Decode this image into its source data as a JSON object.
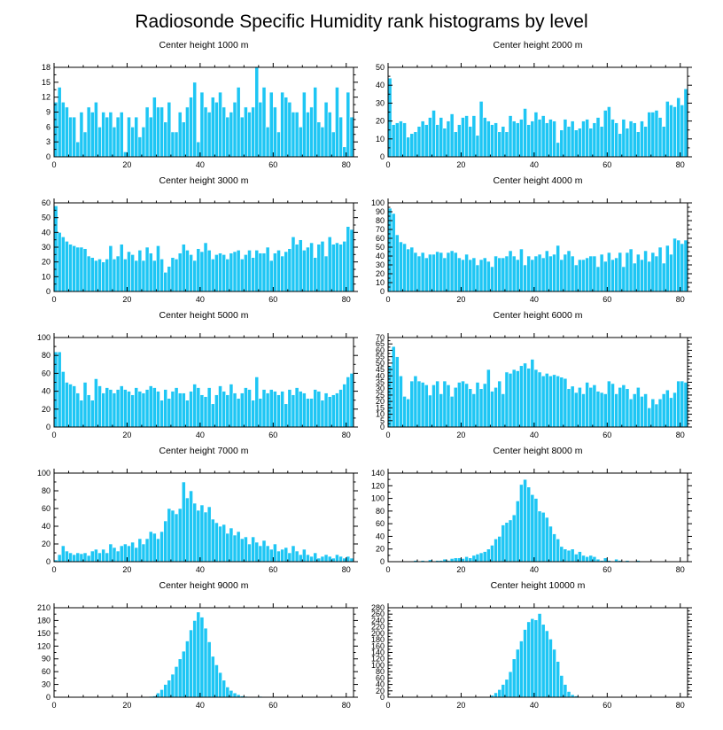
{
  "figure": {
    "title": "Radiosonde Specific Humidity rank histograms by level"
  },
  "colors": {
    "bar": "#1ec6f4",
    "bar_edge": "#ffffff",
    "frame": "#000000"
  },
  "chart_data": [
    {
      "type": "bar",
      "title": "Center height 1000 m",
      "xlim": [
        0,
        82
      ],
      "ylim": [
        0,
        18
      ],
      "xticks": [
        0,
        20,
        40,
        60,
        80
      ],
      "yticks": [
        0,
        3,
        6,
        9,
        12,
        15,
        18
      ],
      "values": [
        11,
        14,
        11,
        10,
        8,
        8,
        3,
        9,
        5,
        10,
        9,
        11,
        6,
        9,
        8,
        9,
        6,
        8,
        9,
        1,
        8,
        6,
        8,
        4,
        6,
        10,
        8,
        12,
        10,
        10,
        7,
        11,
        5,
        5,
        9,
        7,
        10,
        12,
        15,
        3,
        13,
        10,
        9,
        12,
        11,
        13,
        10,
        8,
        9,
        11,
        14,
        8,
        10,
        9,
        10,
        18,
        11,
        14,
        6,
        13,
        10,
        5,
        13,
        12,
        11,
        9,
        9,
        6,
        13,
        9,
        10,
        14,
        7,
        6,
        11,
        9,
        5,
        14,
        8,
        2,
        13,
        8
      ]
    },
    {
      "type": "bar",
      "title": "Center height 2000 m",
      "xlim": [
        0,
        82
      ],
      "ylim": [
        0,
        50
      ],
      "xticks": [
        0,
        20,
        40,
        60,
        80
      ],
      "yticks": [
        0,
        10,
        20,
        30,
        40,
        50
      ],
      "values": [
        44,
        18,
        19,
        20,
        19,
        11,
        13,
        14,
        17,
        20,
        18,
        22,
        26,
        18,
        22,
        16,
        20,
        24,
        14,
        18,
        22,
        23,
        17,
        23,
        12,
        31,
        22,
        20,
        18,
        19,
        14,
        17,
        14,
        23,
        20,
        19,
        21,
        27,
        18,
        20,
        25,
        21,
        23,
        19,
        21,
        20,
        8,
        15,
        21,
        17,
        20,
        15,
        16,
        20,
        21,
        16,
        19,
        22,
        17,
        26,
        28,
        21,
        19,
        13,
        21,
        16,
        20,
        19,
        14,
        20,
        17,
        25,
        25,
        26,
        22,
        17,
        31,
        29,
        28,
        33,
        29,
        38
      ]
    },
    {
      "type": "bar",
      "title": "Center height 3000 m",
      "xlim": [
        0,
        82
      ],
      "ylim": [
        0,
        60
      ],
      "xticks": [
        0,
        20,
        40,
        60,
        80
      ],
      "yticks": [
        0,
        10,
        20,
        30,
        40,
        50,
        60
      ],
      "values": [
        58,
        40,
        37,
        34,
        32,
        31,
        30,
        30,
        29,
        24,
        23,
        21,
        22,
        20,
        22,
        31,
        22,
        24,
        32,
        22,
        27,
        25,
        21,
        28,
        21,
        30,
        26,
        21,
        31,
        22,
        13,
        17,
        23,
        22,
        26,
        32,
        28,
        25,
        21,
        29,
        27,
        33,
        28,
        22,
        25,
        26,
        25,
        22,
        26,
        27,
        28,
        22,
        25,
        28,
        23,
        28,
        26,
        26,
        30,
        21,
        26,
        28,
        24,
        27,
        29,
        37,
        32,
        35,
        28,
        30,
        33,
        23,
        32,
        34,
        24,
        37,
        32,
        33,
        32,
        34,
        44,
        42
      ]
    },
    {
      "type": "bar",
      "title": "Center height 4000 m",
      "xlim": [
        0,
        82
      ],
      "ylim": [
        0,
        100
      ],
      "xticks": [
        0,
        20,
        40,
        60,
        80
      ],
      "yticks": [
        0,
        10,
        20,
        30,
        40,
        50,
        60,
        70,
        80,
        90,
        100
      ],
      "values": [
        94,
        88,
        64,
        56,
        54,
        48,
        50,
        44,
        40,
        44,
        38,
        42,
        42,
        45,
        44,
        38,
        44,
        46,
        44,
        38,
        36,
        42,
        36,
        38,
        30,
        36,
        38,
        34,
        28,
        40,
        38,
        38,
        40,
        46,
        40,
        36,
        48,
        30,
        40,
        36,
        40,
        42,
        38,
        46,
        40,
        42,
        52,
        36,
        42,
        46,
        40,
        30,
        36,
        36,
        38,
        40,
        40,
        28,
        42,
        34,
        44,
        36,
        38,
        44,
        28,
        44,
        48,
        32,
        42,
        36,
        46,
        34,
        44,
        40,
        50,
        32,
        52,
        42,
        60,
        58,
        54,
        58
      ]
    },
    {
      "type": "bar",
      "title": "Center height 5000 m",
      "xlim": [
        0,
        82
      ],
      "ylim": [
        0,
        100
      ],
      "xticks": [
        0,
        20,
        40,
        60,
        80
      ],
      "yticks": [
        0,
        20,
        40,
        60,
        80,
        100
      ],
      "values": [
        84,
        84,
        62,
        50,
        48,
        46,
        38,
        30,
        50,
        36,
        30,
        54,
        46,
        38,
        44,
        42,
        38,
        42,
        46,
        42,
        40,
        36,
        44,
        40,
        38,
        42,
        46,
        44,
        40,
        30,
        42,
        32,
        40,
        44,
        38,
        38,
        30,
        40,
        48,
        44,
        36,
        34,
        44,
        26,
        36,
        46,
        40,
        36,
        48,
        38,
        32,
        38,
        44,
        42,
        30,
        56,
        32,
        42,
        38,
        42,
        40,
        36,
        40,
        26,
        42,
        36,
        44,
        40,
        38,
        32,
        32,
        42,
        40,
        30,
        38,
        34,
        36,
        38,
        42,
        48,
        56,
        60
      ]
    },
    {
      "type": "bar",
      "title": "Center height 6000 m",
      "xlim": [
        0,
        82
      ],
      "ylim": [
        0,
        70
      ],
      "xticks": [
        0,
        20,
        40,
        60,
        80
      ],
      "yticks": [
        0,
        5,
        10,
        15,
        20,
        25,
        30,
        35,
        40,
        45,
        50,
        55,
        60,
        65,
        70
      ],
      "values": [
        48,
        63,
        55,
        40,
        24,
        22,
        36,
        40,
        36,
        35,
        33,
        25,
        33,
        36,
        26,
        36,
        33,
        24,
        31,
        35,
        36,
        34,
        30,
        26,
        35,
        30,
        34,
        45,
        28,
        31,
        36,
        26,
        43,
        42,
        45,
        44,
        48,
        50,
        46,
        53,
        45,
        43,
        40,
        42,
        40,
        41,
        40,
        39,
        38,
        30,
        32,
        27,
        31,
        26,
        35,
        31,
        33,
        28,
        27,
        26,
        36,
        34,
        26,
        31,
        33,
        30,
        22,
        26,
        31,
        24,
        26,
        15,
        22,
        18,
        22,
        26,
        29,
        23,
        27,
        36,
        36,
        35
      ]
    },
    {
      "type": "bar",
      "title": "Center height 7000 m",
      "xlim": [
        0,
        82
      ],
      "ylim": [
        0,
        100
      ],
      "xticks": [
        0,
        20,
        40,
        60,
        80
      ],
      "yticks": [
        0,
        20,
        40,
        60,
        80,
        100
      ],
      "values": [
        2,
        8,
        18,
        12,
        10,
        8,
        10,
        9,
        10,
        7,
        12,
        14,
        10,
        14,
        10,
        20,
        16,
        12,
        18,
        20,
        18,
        22,
        16,
        26,
        20,
        26,
        34,
        32,
        26,
        34,
        46,
        60,
        58,
        54,
        60,
        90,
        72,
        80,
        66,
        58,
        64,
        56,
        62,
        48,
        44,
        40,
        42,
        32,
        38,
        30,
        34,
        26,
        28,
        20,
        28,
        22,
        18,
        24,
        18,
        14,
        20,
        12,
        14,
        16,
        10,
        18,
        12,
        8,
        14,
        8,
        6,
        10,
        4,
        6,
        8,
        6,
        4,
        8,
        6,
        4,
        6,
        4
      ]
    },
    {
      "type": "bar",
      "title": "Center height 8000 m",
      "xlim": [
        0,
        82
      ],
      "ylim": [
        0,
        140
      ],
      "xticks": [
        0,
        20,
        40,
        60,
        80
      ],
      "yticks": [
        0,
        20,
        40,
        60,
        80,
        100,
        120,
        140
      ],
      "values": [
        0,
        0,
        0,
        0,
        1,
        0,
        0,
        2,
        0,
        2,
        1,
        3,
        0,
        2,
        2,
        4,
        2,
        5,
        6,
        6,
        5,
        8,
        6,
        10,
        12,
        14,
        16,
        20,
        26,
        36,
        40,
        58,
        62,
        66,
        74,
        96,
        122,
        130,
        118,
        106,
        100,
        80,
        78,
        70,
        56,
        44,
        36,
        24,
        20,
        18,
        20,
        12,
        16,
        10,
        8,
        10,
        8,
        4,
        2,
        6,
        2,
        0,
        4,
        2,
        0,
        2,
        0,
        0,
        2,
        0,
        0,
        0,
        0,
        0,
        0,
        0,
        0,
        0,
        0,
        0,
        0,
        0
      ]
    },
    {
      "type": "bar",
      "title": "Center height 9000 m",
      "xlim": [
        0,
        82
      ],
      "ylim": [
        0,
        210
      ],
      "xticks": [
        0,
        20,
        40,
        60,
        80
      ],
      "yticks": [
        0,
        30,
        60,
        90,
        120,
        150,
        180,
        210
      ],
      "values": [
        0,
        0,
        0,
        0,
        0,
        0,
        0,
        0,
        0,
        0,
        0,
        0,
        0,
        0,
        0,
        0,
        0,
        0,
        0,
        0,
        0,
        0,
        0,
        0,
        1,
        1,
        2,
        3,
        10,
        18,
        30,
        40,
        54,
        72,
        90,
        108,
        132,
        158,
        180,
        200,
        188,
        162,
        130,
        96,
        76,
        58,
        40,
        24,
        16,
        10,
        6,
        3,
        2,
        1,
        1,
        0,
        2,
        1,
        0,
        0,
        1,
        0,
        0,
        0,
        0,
        0,
        0,
        0,
        0,
        0,
        0,
        0,
        0,
        0,
        0,
        0,
        0,
        0,
        0,
        0,
        0,
        0
      ]
    },
    {
      "type": "bar",
      "title": "Center height 10000 m",
      "xlim": [
        0,
        82
      ],
      "ylim": [
        0,
        280
      ],
      "xticks": [
        0,
        20,
        40,
        60,
        80
      ],
      "yticks": [
        0,
        20,
        40,
        60,
        80,
        100,
        120,
        140,
        160,
        180,
        200,
        220,
        240,
        260,
        280
      ],
      "values": [
        0,
        0,
        0,
        0,
        0,
        0,
        0,
        0,
        0,
        0,
        0,
        0,
        0,
        0,
        0,
        0,
        0,
        0,
        0,
        0,
        0,
        0,
        0,
        0,
        0,
        0,
        1,
        2,
        6,
        14,
        24,
        40,
        56,
        80,
        120,
        150,
        176,
        212,
        236,
        246,
        242,
        262,
        228,
        208,
        182,
        150,
        112,
        68,
        40,
        18,
        8,
        4,
        2,
        1,
        0,
        0,
        0,
        0,
        0,
        0,
        0,
        0,
        0,
        0,
        0,
        0,
        0,
        0,
        0,
        0,
        0,
        0,
        0,
        0,
        0,
        0,
        0,
        0,
        0,
        0,
        0,
        0
      ]
    }
  ]
}
